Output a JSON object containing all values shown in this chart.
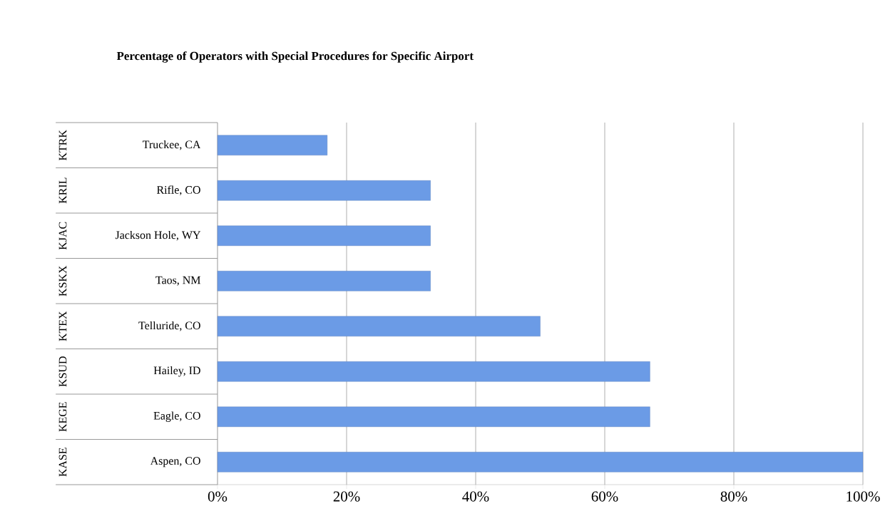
{
  "chart_data": {
    "type": "bar",
    "orientation": "horizontal",
    "title": "Percentage of Operators with Special Procedures for Specific Airport",
    "categories": [
      "Truckee, CA",
      "Rifle, CO",
      "Jackson Hole, WY",
      "Taos, NM",
      "Telluride, CO",
      "Hailey, ID",
      "Eagle, CO",
      "Aspen, CO"
    ],
    "values": [
      17,
      33,
      33,
      33,
      50,
      67,
      67,
      100
    ],
    "color": "#6b9be6",
    "xlim": [
      0,
      100
    ],
    "xticks": [
      {
        "value": 0,
        "label": "0%"
      },
      {
        "value": 20,
        "label": "20%"
      },
      {
        "value": 40,
        "label": "40%"
      },
      {
        "value": 60,
        "label": "60%"
      },
      {
        "value": 80,
        "label": "80%"
      },
      {
        "value": 100,
        "label": "100%"
      }
    ],
    "grid": "x",
    "annotations": [
      "KTRK",
      "KRIL",
      "KJAC",
      "KSKX",
      "KTEX",
      "KSUD",
      "KEGE",
      "KASE"
    ]
  }
}
